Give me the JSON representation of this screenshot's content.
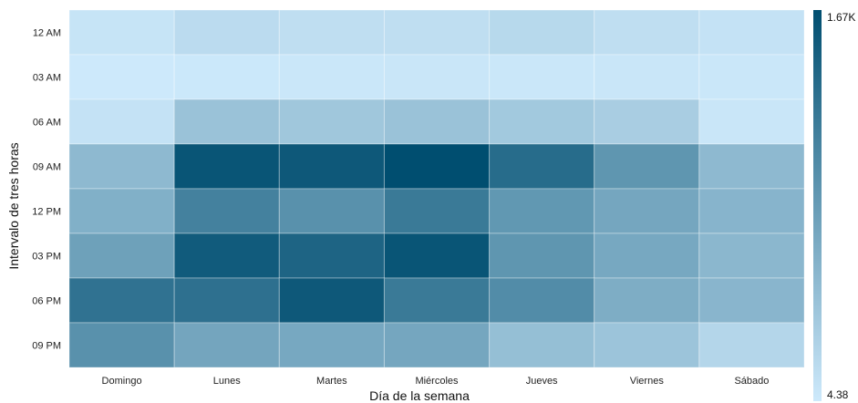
{
  "chart_data": {
    "type": "heatmap",
    "xlabel": "Día de la semana",
    "ylabel": "Intervalo de tres horas",
    "x_categories": [
      "Domingo",
      "Lunes",
      "Martes",
      "Miércoles",
      "Jueves",
      "Viernes",
      "Sábado"
    ],
    "y_categories": [
      "12 AM",
      "03 AM",
      "06 AM",
      "09 AM",
      "12 PM",
      "03 PM",
      "06 PM",
      "09 PM"
    ],
    "values": [
      [
        60,
        150,
        120,
        120,
        180,
        120,
        80
      ],
      [
        4.38,
        20,
        30,
        40,
        30,
        40,
        30
      ],
      [
        80,
        420,
        370,
        420,
        350,
        300,
        40
      ],
      [
        520,
        1600,
        1560,
        1670,
        1350,
        900,
        520
      ],
      [
        620,
        1120,
        950,
        1200,
        880,
        720,
        570
      ],
      [
        780,
        1530,
        1430,
        1600,
        900,
        700,
        540
      ],
      [
        1280,
        1300,
        1560,
        1200,
        1000,
        650,
        560
      ],
      [
        950,
        730,
        700,
        720,
        460,
        400,
        210
      ]
    ],
    "colorscale": {
      "min": 4.38,
      "max": 1670,
      "min_label": "4.38",
      "max_label": "1.67K",
      "low_color": "#cde9fb",
      "high_color": "#004e70"
    },
    "legend_position": "right",
    "grid": false
  }
}
